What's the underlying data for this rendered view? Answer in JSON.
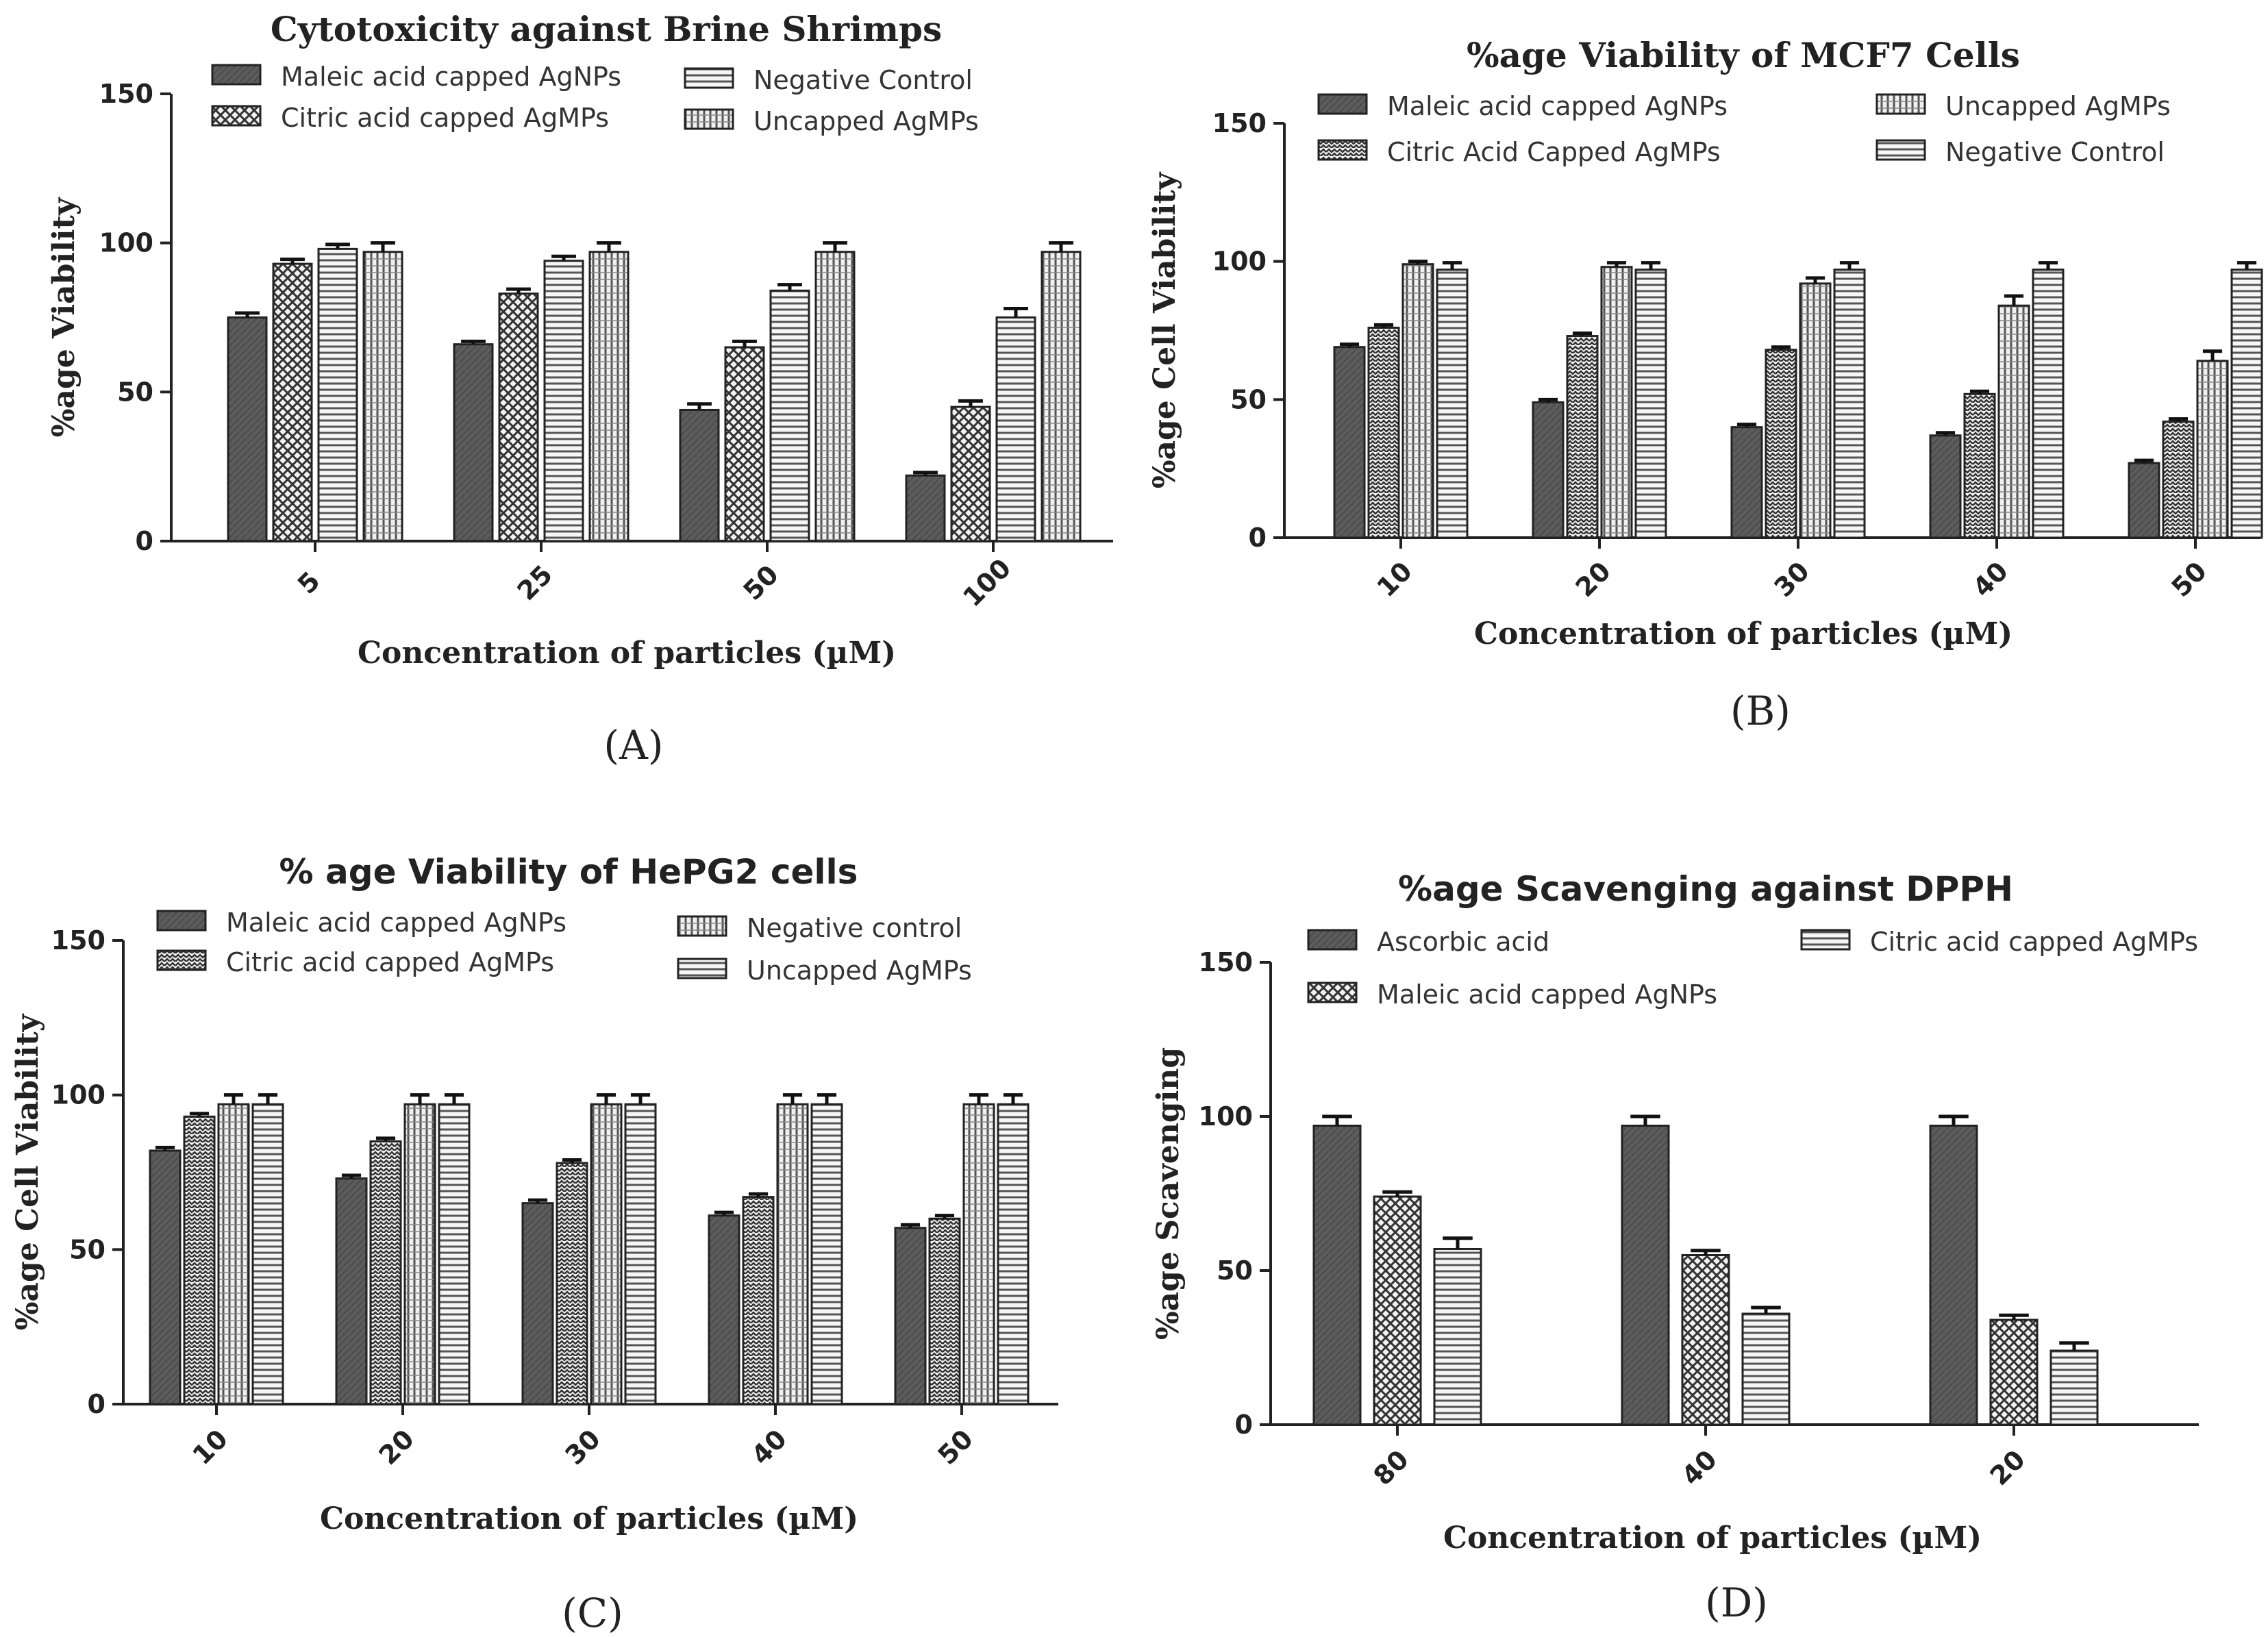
{
  "chart_data": [
    {
      "type": "bar",
      "panel_label": "(A)",
      "title": "Cytotoxicity against Brine Shrimps",
      "xlabel": "Concentration of particles (µM)",
      "ylabel": "%age Viability",
      "ylim": [
        0,
        150
      ],
      "yticks": [
        "0",
        "50",
        "100",
        "150"
      ],
      "categories": [
        "5",
        "25",
        "50",
        "100"
      ],
      "legend": [
        {
          "name": "Maleic acid capped AgNPs",
          "pattern": "p-dark"
        },
        {
          "name": "Citric acid capped AgMPs",
          "pattern": "p-check"
        },
        {
          "name": "Negative Control",
          "pattern": "p-hlines"
        },
        {
          "name": "Uncapped AgMPs",
          "pattern": "p-vlines"
        }
      ],
      "series": [
        {
          "name": "Maleic acid capped AgNPs",
          "pattern": "p-dark",
          "values": [
            75,
            66,
            44,
            22
          ],
          "errors": [
            1.5,
            1,
            2,
            1
          ]
        },
        {
          "name": "Citric acid capped AgMPs",
          "pattern": "p-check",
          "values": [
            93,
            83,
            65,
            45
          ],
          "errors": [
            1.5,
            1.5,
            2,
            2
          ]
        },
        {
          "name": "Negative Control",
          "pattern": "p-hlines",
          "values": [
            98,
            94,
            84,
            75
          ],
          "errors": [
            1.5,
            1.5,
            2,
            3
          ]
        },
        {
          "name": "Uncapped AgMPs",
          "pattern": "p-vlines",
          "values": [
            97,
            97,
            97,
            97
          ],
          "errors": [
            3,
            3,
            3,
            3
          ]
        }
      ]
    },
    {
      "type": "bar",
      "panel_label": "(B)",
      "title": "%age Viability of MCF7 Cells",
      "xlabel": "Concentration of particles (µM)",
      "ylabel": "%age Cell Viability",
      "ylim": [
        0,
        150
      ],
      "yticks": [
        "0",
        "50",
        "100",
        "150"
      ],
      "categories": [
        "10",
        "20",
        "30",
        "40",
        "50"
      ],
      "legend": [
        {
          "name": "Maleic acid capped AgNPs",
          "pattern": "p-dark"
        },
        {
          "name": "Citric Acid Capped AgMPs",
          "pattern": "p-zigzag"
        },
        {
          "name": "Uncapped AgMPs",
          "pattern": "p-vlines"
        },
        {
          "name": "Negative Control",
          "pattern": "p-hlines"
        }
      ],
      "series": [
        {
          "name": "Maleic acid capped AgNPs",
          "pattern": "p-dark",
          "values": [
            69,
            49,
            40,
            37,
            27
          ],
          "errors": [
            1,
            1,
            1,
            1,
            1
          ]
        },
        {
          "name": "Citric Acid Capped AgMPs",
          "pattern": "p-zigzag",
          "values": [
            76,
            73,
            68,
            52,
            42
          ],
          "errors": [
            1,
            1,
            1,
            1,
            1
          ]
        },
        {
          "name": "Uncapped AgMPs",
          "pattern": "p-vlines",
          "values": [
            99,
            98,
            92,
            84,
            64
          ],
          "errors": [
            1,
            1.5,
            2,
            3.5,
            3.5
          ]
        },
        {
          "name": "Negative Control",
          "pattern": "p-hlines",
          "values": [
            97,
            97,
            97,
            97,
            97
          ],
          "errors": [
            2.5,
            2.5,
            2.5,
            2.5,
            2.5
          ]
        }
      ]
    },
    {
      "type": "bar",
      "panel_label": "(C)",
      "title": "% age Viability of HePG2 cells",
      "xlabel": "Concentration of particles (µM)",
      "ylabel": "%age Cell Viability",
      "ylim": [
        0,
        150
      ],
      "yticks": [
        "0",
        "50",
        "100",
        "150"
      ],
      "categories": [
        "10",
        "20",
        "30",
        "40",
        "50"
      ],
      "legend": [
        {
          "name": "Maleic acid capped AgNPs",
          "pattern": "p-dark"
        },
        {
          "name": "Citric acid capped AgMPs",
          "pattern": "p-zigzag"
        },
        {
          "name": "Negative control",
          "pattern": "p-vlines"
        },
        {
          "name": "Uncapped AgMPs",
          "pattern": "p-hlines"
        }
      ],
      "series": [
        {
          "name": "Maleic acid capped AgNPs",
          "pattern": "p-dark",
          "values": [
            82,
            73,
            65,
            61,
            57
          ],
          "errors": [
            1,
            1,
            1,
            1,
            1
          ]
        },
        {
          "name": "Citric acid capped AgMPs",
          "pattern": "p-zigzag",
          "values": [
            93,
            85,
            78,
            67,
            60
          ],
          "errors": [
            1,
            1,
            1,
            1,
            1
          ]
        },
        {
          "name": "Negative control",
          "pattern": "p-vlines",
          "values": [
            97,
            97,
            97,
            97,
            97
          ],
          "errors": [
            3,
            3,
            3,
            3,
            3
          ]
        },
        {
          "name": "Uncapped AgMPs",
          "pattern": "p-hlines",
          "values": [
            97,
            97,
            97,
            97,
            97
          ],
          "errors": [
            3,
            3,
            3,
            3,
            3
          ]
        }
      ]
    },
    {
      "type": "bar",
      "panel_label": "(D)",
      "title": "%age Scavenging against DPPH",
      "xlabel": "Concentration of particles (µM)",
      "ylabel": "%age Scavenging",
      "ylim": [
        0,
        150
      ],
      "yticks": [
        "0",
        "50",
        "100",
        "150"
      ],
      "categories": [
        "80",
        "40",
        "20"
      ],
      "legend": [
        {
          "name": "Ascorbic acid",
          "pattern": "p-dark"
        },
        {
          "name": "Maleic acid capped AgNPs",
          "pattern": "p-check"
        },
        {
          "name": "Citric acid capped AgMPs",
          "pattern": "p-hlines"
        }
      ],
      "series": [
        {
          "name": "Ascorbic acid",
          "pattern": "p-dark",
          "values": [
            97,
            97,
            97
          ],
          "errors": [
            3,
            3,
            3
          ]
        },
        {
          "name": "Maleic acid capped AgNPs",
          "pattern": "p-check",
          "values": [
            74,
            55,
            34
          ],
          "errors": [
            1.5,
            1.5,
            1.5
          ]
        },
        {
          "name": "Citric acid capped AgMPs",
          "pattern": "p-hlines",
          "values": [
            57,
            36,
            24
          ],
          "errors": [
            3.5,
            2,
            2.5
          ]
        }
      ]
    }
  ]
}
